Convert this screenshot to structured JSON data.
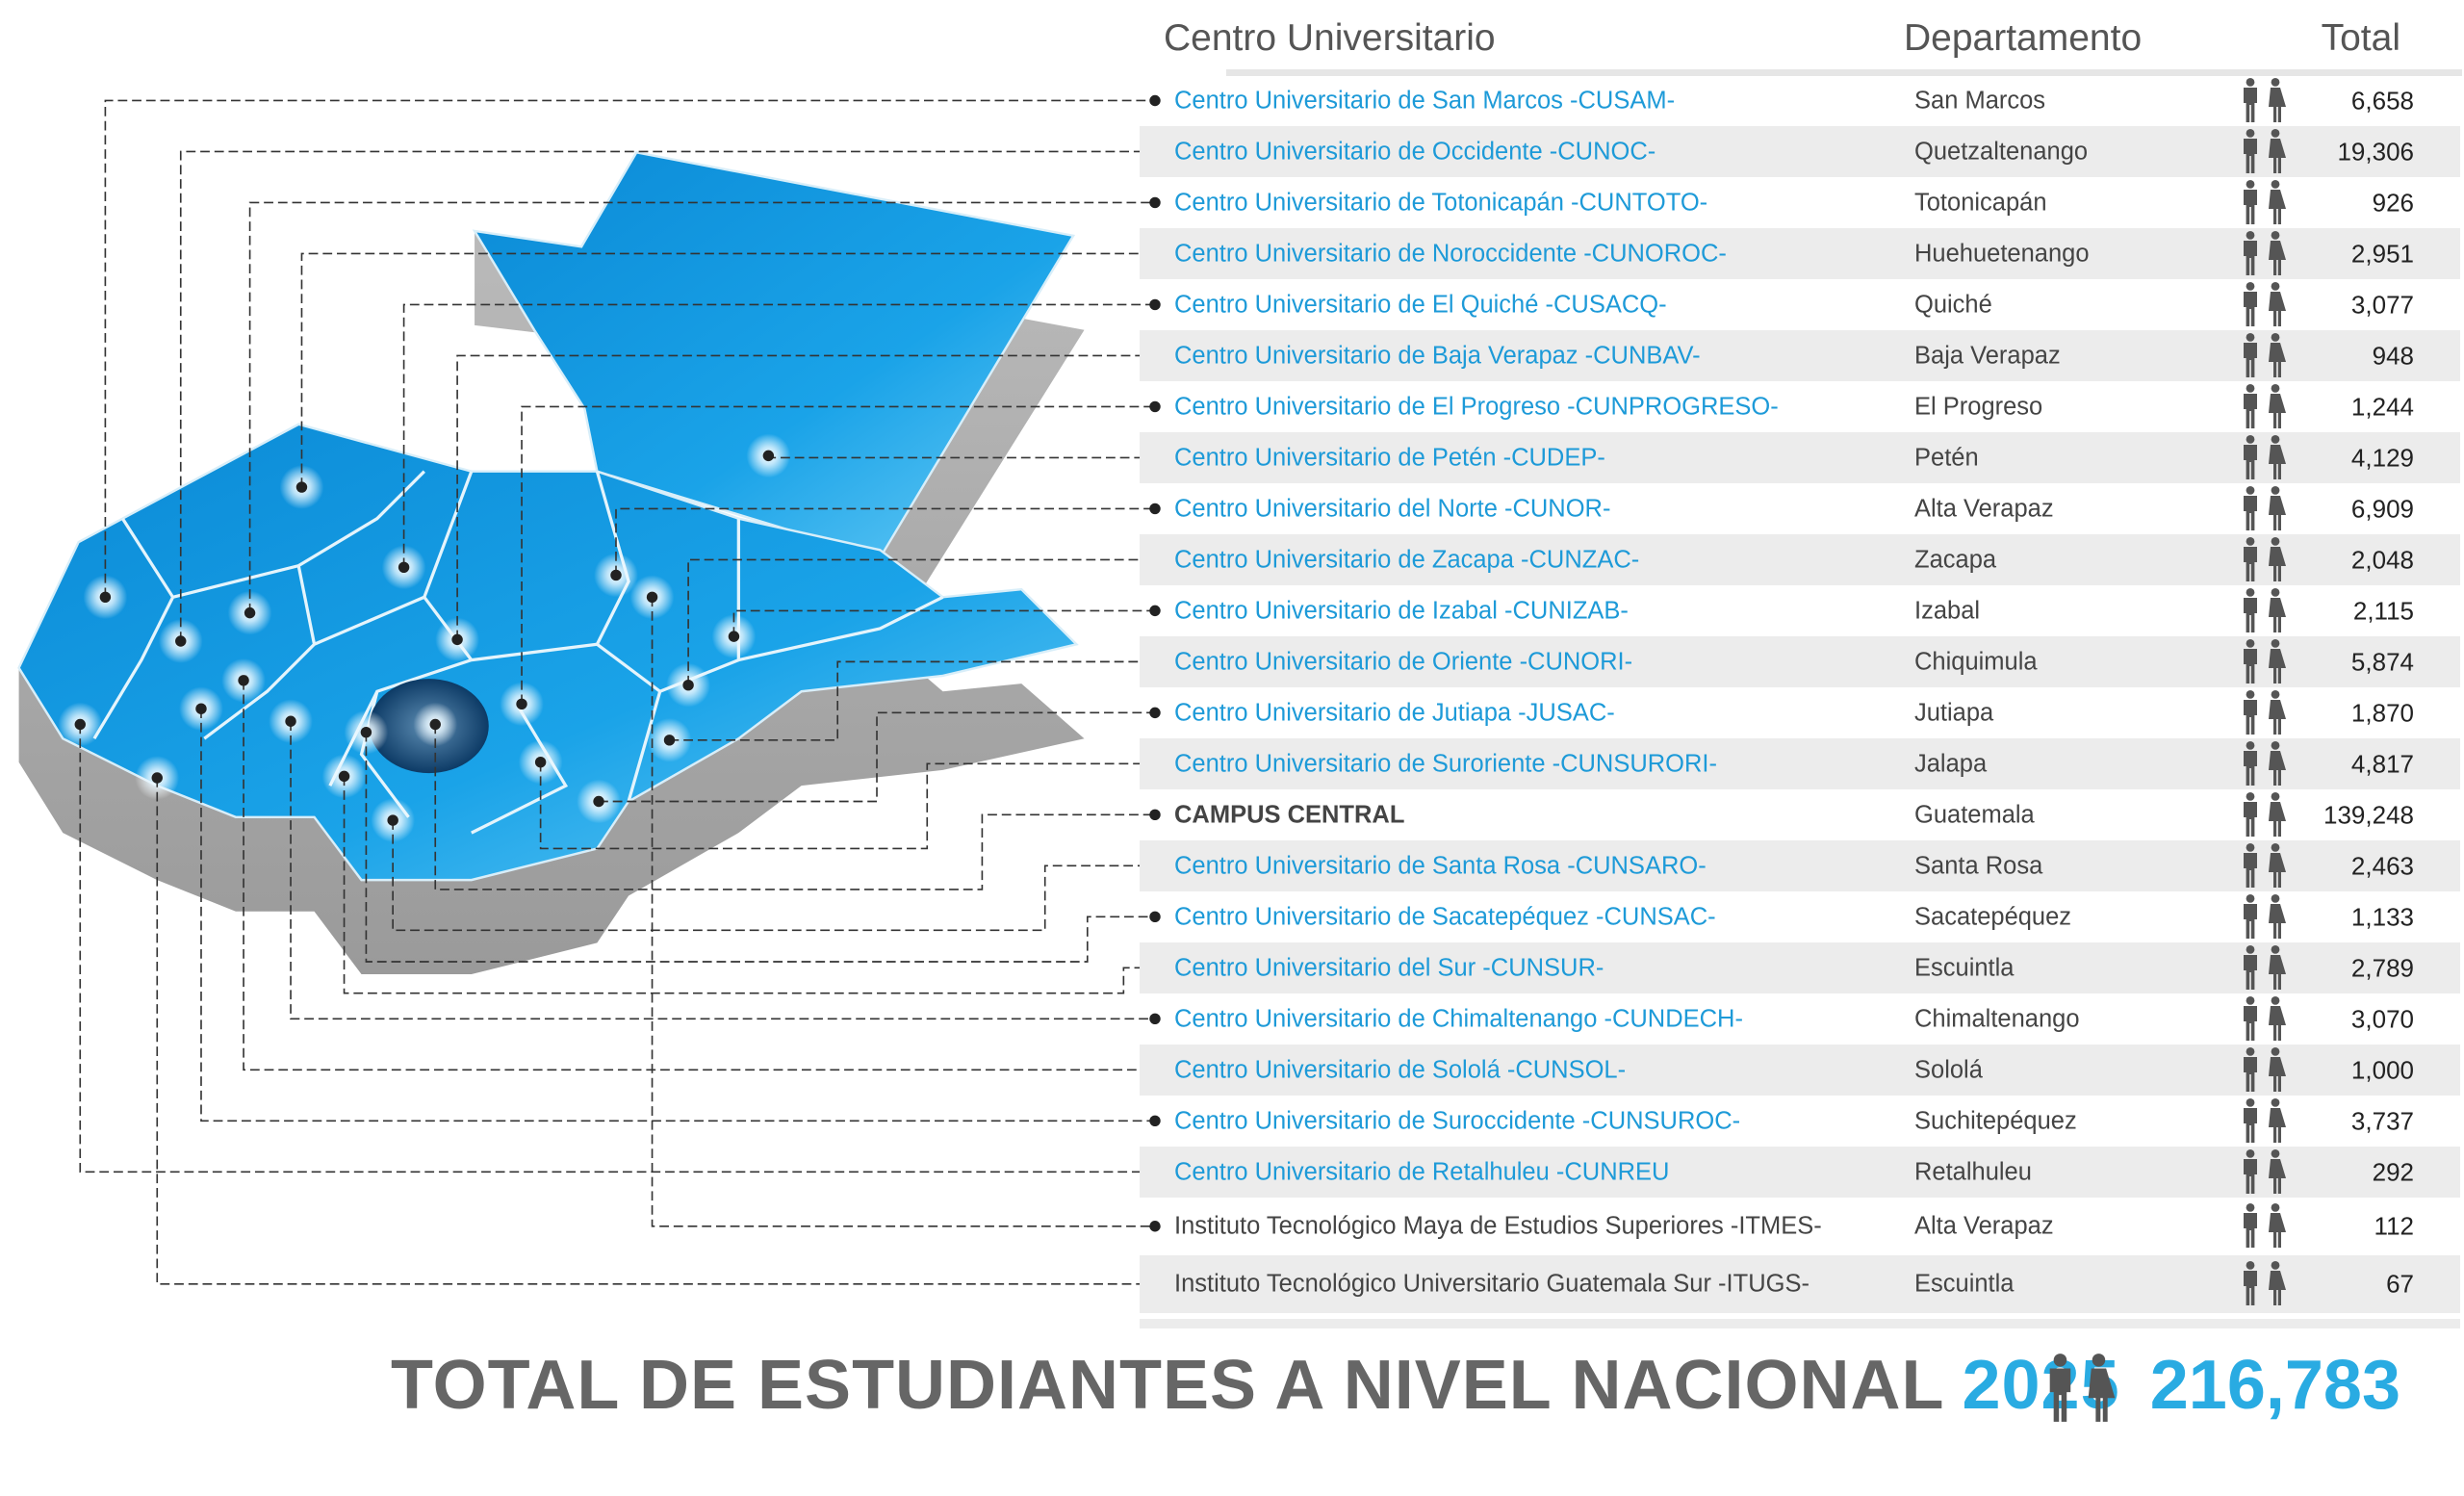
{
  "header": {
    "col_center": "Centro Universitario",
    "col_department": "Departamento",
    "col_total": "Total"
  },
  "icons": {
    "row_icon": "man-woman-icon",
    "bullet": "dot-connector"
  },
  "colors": {
    "accent_blue": "#29abe2",
    "link_blue": "#1d9ad8",
    "text_gray": "#666666",
    "map_blue": "#0a8fd8",
    "map_highlight": "#0d3b66"
  },
  "rows": [
    {
      "name": "Centro Universitario de San Marcos -CUSAM-",
      "department": "San Marcos",
      "total": "6,658",
      "style": "link"
    },
    {
      "name": "Centro Universitario de Occidente -CUNOC-",
      "department": "Quetzaltenango",
      "total": "19,306",
      "style": "link"
    },
    {
      "name": "Centro Universitario de Totonicapán -CUNTOTO-",
      "department": "Totonicapán",
      "total": "926",
      "style": "link"
    },
    {
      "name": "Centro Universitario de Noroccidente -CUNOROC-",
      "department": "Huehuetenango",
      "total": "2,951",
      "style": "link"
    },
    {
      "name": "Centro Universitario de El Quiché -CUSACQ-",
      "department": "Quiché",
      "total": "3,077",
      "style": "link"
    },
    {
      "name": "Centro Universitario de Baja Verapaz -CUNBAV-",
      "department": "Baja Verapaz",
      "total": "948",
      "style": "link"
    },
    {
      "name": "Centro Universitario de El Progreso -CUNPROGRESO-",
      "department": "El Progreso",
      "total": "1,244",
      "style": "link"
    },
    {
      "name": "Centro Universitario de Petén -CUDEP-",
      "department": "Petén",
      "total": "4,129",
      "style": "link"
    },
    {
      "name": "Centro Universitario del Norte -CUNOR-",
      "department": "Alta Verapaz",
      "total": "6,909",
      "style": "link"
    },
    {
      "name": "Centro Universitario de Zacapa -CUNZAC-",
      "department": "Zacapa",
      "total": "2,048",
      "style": "link"
    },
    {
      "name": "Centro Universitario de Izabal -CUNIZAB-",
      "department": "Izabal",
      "total": "2,115",
      "style": "link"
    },
    {
      "name": "Centro Universitario de Oriente -CUNORI-",
      "department": "Chiquimula",
      "total": "5,874",
      "style": "link"
    },
    {
      "name": "Centro Universitario de Jutiapa -JUSAC-",
      "department": "Jutiapa",
      "total": "1,870",
      "style": "link"
    },
    {
      "name": "Centro Universitario de Suroriente -CUNSURORI-",
      "department": "Jalapa",
      "total": "4,817",
      "style": "link"
    },
    {
      "name": "CAMPUS CENTRAL",
      "department": "Guatemala",
      "total": "139,248",
      "style": "campus"
    },
    {
      "name": "Centro Universitario de Santa Rosa -CUNSARO-",
      "department": "Santa Rosa",
      "total": "2,463",
      "style": "link"
    },
    {
      "name": "Centro Universitario de Sacatepéquez -CUNSAC-",
      "department": "Sacatepéquez",
      "total": "1,133",
      "style": "link"
    },
    {
      "name": "Centro Universitario del Sur -CUNSUR-",
      "department": "Escuintla",
      "total": "2,789",
      "style": "link"
    },
    {
      "name": "Centro Universitario de Chimaltenango -CUNDECH-",
      "department": "Chimaltenango",
      "total": "3,070",
      "style": "link"
    },
    {
      "name": "Centro Universitario de Sololá -CUNSOL-",
      "department": "Sololá",
      "total": "1,000",
      "style": "link"
    },
    {
      "name": "Centro Universitario de Suroccidente -CUNSUROC-",
      "department": "Suchitepéquez",
      "total": "3,737",
      "style": "link"
    },
    {
      "name": "Centro Universitario de Retalhuleu -CUNREU",
      "department": "Retalhuleu",
      "total": "292",
      "style": "link"
    },
    {
      "name": "Instituto Tecnológico Maya de Estudios Superiores -ITMES-",
      "department": "Alta Verapaz",
      "total": "112",
      "style": "plain"
    },
    {
      "name": "Instituto Tecnológico Universitario Guatemala Sur -ITUGS-",
      "department": "Escuintla",
      "total": "67",
      "style": "plain"
    }
  ],
  "footer": {
    "label": "TOTAL DE ESTUDIANTES A NIVEL NACIONAL",
    "year": "2025",
    "total": "216,783"
  }
}
